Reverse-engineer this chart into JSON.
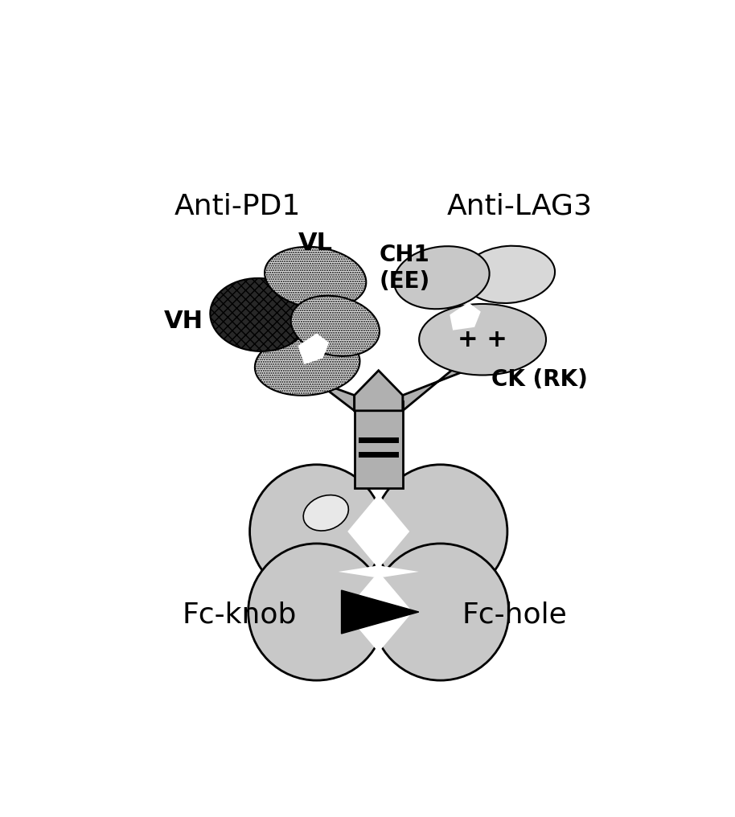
{
  "anti_pd1_label": "Anti-PD1",
  "anti_lag3_label": "Anti-LAG3",
  "vh_label": "VH",
  "vl_label": "VL",
  "ch1_label": "CH1\n(EE)",
  "ck_label": "CK (RK)",
  "fc_knob_label": "Fc-knob",
  "fc_hole_label": "Fc-hole",
  "bg_color": "#ffffff",
  "gray_fill": "#b0b0b0",
  "light_gray": "#c8c8c8",
  "lighter_gray": "#d8d8d8",
  "dark_fill": "#282828",
  "dot_fill": "#e0e0e0",
  "white": "#ffffff"
}
